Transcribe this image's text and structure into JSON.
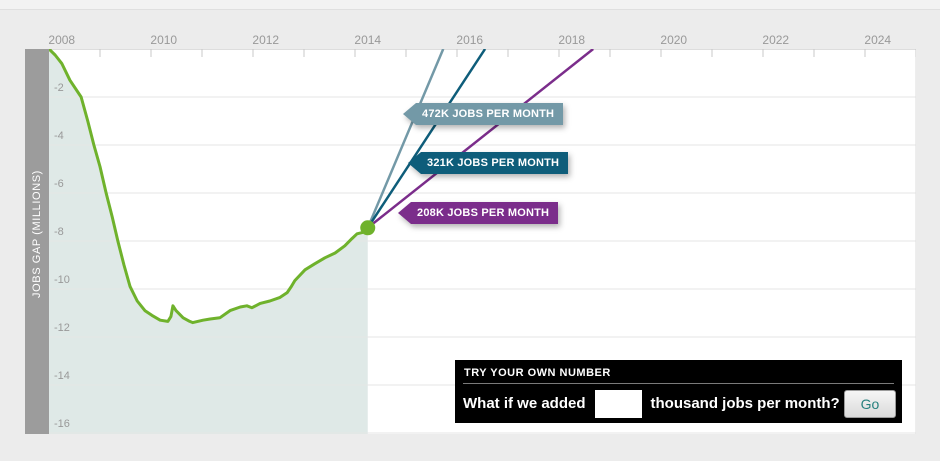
{
  "colors": {
    "page_bg": "#ececec",
    "plot_bg": "#ffffff",
    "axis_bar": "#9c9c9c",
    "axis_text": "#999999",
    "axis_line": "#bbbbbb",
    "tick": "#c8c8c8",
    "gridline": "#e6e6e6",
    "panel_bg": "#000000",
    "go_text": "#26807e"
  },
  "chart_data": {
    "type": "area",
    "ylabel": "JOBS GAP (MILLIONS)",
    "xlim": [
      2007.75,
      2024.75
    ],
    "ylim": [
      -16.05,
      0
    ],
    "x_tick_labels": [
      2008,
      2010,
      2012,
      2014,
      2016,
      2018,
      2020,
      2022,
      2024
    ],
    "x_minor_tick_start": 2008.75,
    "x_minor_tick_step": 1,
    "x_minor_tick_count": 17,
    "y_gridlines": [
      -2,
      -4,
      -6,
      -8,
      -10,
      -12,
      -14,
      -16
    ],
    "grid": true,
    "legend_position": "none",
    "series": [
      {
        "name": "jobs-gap-historical",
        "color": "#6fb22c",
        "fill": "#dfe9e7",
        "points": [
          [
            2007.75,
            0
          ],
          [
            2007.87,
            -0.25
          ],
          [
            2008.0,
            -0.6
          ],
          [
            2008.16,
            -1.3
          ],
          [
            2008.38,
            -2.0
          ],
          [
            2008.51,
            -3.0
          ],
          [
            2008.63,
            -4.0
          ],
          [
            2008.75,
            -4.9
          ],
          [
            2008.87,
            -6.0
          ],
          [
            2008.99,
            -7.0
          ],
          [
            2009.1,
            -8.0
          ],
          [
            2009.22,
            -9.0
          ],
          [
            2009.34,
            -9.9
          ],
          [
            2009.48,
            -10.5
          ],
          [
            2009.63,
            -10.9
          ],
          [
            2009.77,
            -11.1
          ],
          [
            2009.93,
            -11.3
          ],
          [
            2010.08,
            -11.35
          ],
          [
            2010.14,
            -11.15
          ],
          [
            2010.18,
            -10.7
          ],
          [
            2010.24,
            -10.9
          ],
          [
            2010.38,
            -11.2
          ],
          [
            2010.51,
            -11.35
          ],
          [
            2010.57,
            -11.4
          ],
          [
            2010.77,
            -11.3
          ],
          [
            2010.91,
            -11.25
          ],
          [
            2011.1,
            -11.2
          ],
          [
            2011.3,
            -10.9
          ],
          [
            2011.5,
            -10.75
          ],
          [
            2011.63,
            -10.7
          ],
          [
            2011.73,
            -10.78
          ],
          [
            2011.89,
            -10.6
          ],
          [
            2012.08,
            -10.5
          ],
          [
            2012.28,
            -10.35
          ],
          [
            2012.42,
            -10.15
          ],
          [
            2012.5,
            -9.9
          ],
          [
            2012.57,
            -9.65
          ],
          [
            2012.77,
            -9.2
          ],
          [
            2012.96,
            -8.95
          ],
          [
            2013.16,
            -8.7
          ],
          [
            2013.36,
            -8.5
          ],
          [
            2013.55,
            -8.2
          ],
          [
            2013.69,
            -7.9
          ],
          [
            2013.79,
            -7.7
          ],
          [
            2013.89,
            -7.65
          ],
          [
            2014.0,
            -7.45
          ]
        ]
      }
    ],
    "endpoint": {
      "x": 2014.0,
      "y": -7.45,
      "color": "#6fb22c"
    },
    "projections": [
      {
        "name": "472K JOBS PER MONTH",
        "color": "#7399a7",
        "from": [
          2014.0,
          -7.45
        ],
        "to": [
          2015.48,
          0
        ]
      },
      {
        "name": "321K JOBS PER MONTH",
        "color": "#0e5d7a",
        "from": [
          2014.0,
          -7.45
        ],
        "to": [
          2016.3,
          0
        ]
      },
      {
        "name": "208K JOBS PER MONTH",
        "color": "#7b2d8b",
        "from": [
          2014.0,
          -7.45
        ],
        "to": [
          2018.42,
          0
        ]
      }
    ]
  },
  "try_box": {
    "header": "TRY YOUR OWN NUMBER",
    "question_before": "What if we added",
    "input_value": "",
    "question_after": "thousand jobs per month?",
    "go_label": "Go"
  }
}
